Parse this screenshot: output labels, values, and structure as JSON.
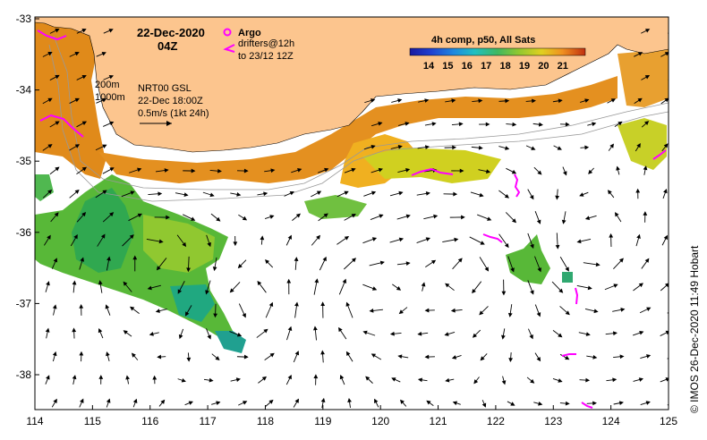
{
  "title": {
    "date": "22-Dec-2020",
    "time": "04Z"
  },
  "legend": {
    "argo_label": "Argo",
    "drifters_label": "drifters@12h",
    "drifters_to": "to 23/12 12Z",
    "argo_color": "#ff00ff",
    "drifter_color": "#ff00ff"
  },
  "colorbar": {
    "title": "4h comp, p50, All Sats",
    "ticks": [
      "14",
      "15",
      "16",
      "17",
      "18",
      "19",
      "20",
      "21"
    ],
    "colors": [
      "#1a1aa0",
      "#2040d0",
      "#1e88e0",
      "#20c0c0",
      "#30c080",
      "#50b040",
      "#90c830",
      "#d0d020",
      "#f0c020",
      "#f09020",
      "#e06010",
      "#c03010"
    ]
  },
  "annotations": {
    "isobath_200": "200m",
    "isobath_1000": "1000m",
    "model": "NRT00 GSL",
    "model_time": "22-Dec 18:00Z",
    "scale": "0.5m/s (1kt 24h)"
  },
  "axes": {
    "x_ticks": [
      "114",
      "115",
      "116",
      "117",
      "118",
      "119",
      "120",
      "121",
      "122",
      "123",
      "124",
      "125"
    ],
    "y_ticks": [
      "-33",
      "-34",
      "-35",
      "-36",
      "-37",
      "-38"
    ],
    "lon_range": [
      114,
      125
    ],
    "lat_range": [
      -38.5,
      -33
    ]
  },
  "credit": "©  IMOS 26-Dec-2020 11:49 Hobart",
  "colors": {
    "land": "#fcc58e",
    "frame": "#000000",
    "arrow": "#000000"
  }
}
